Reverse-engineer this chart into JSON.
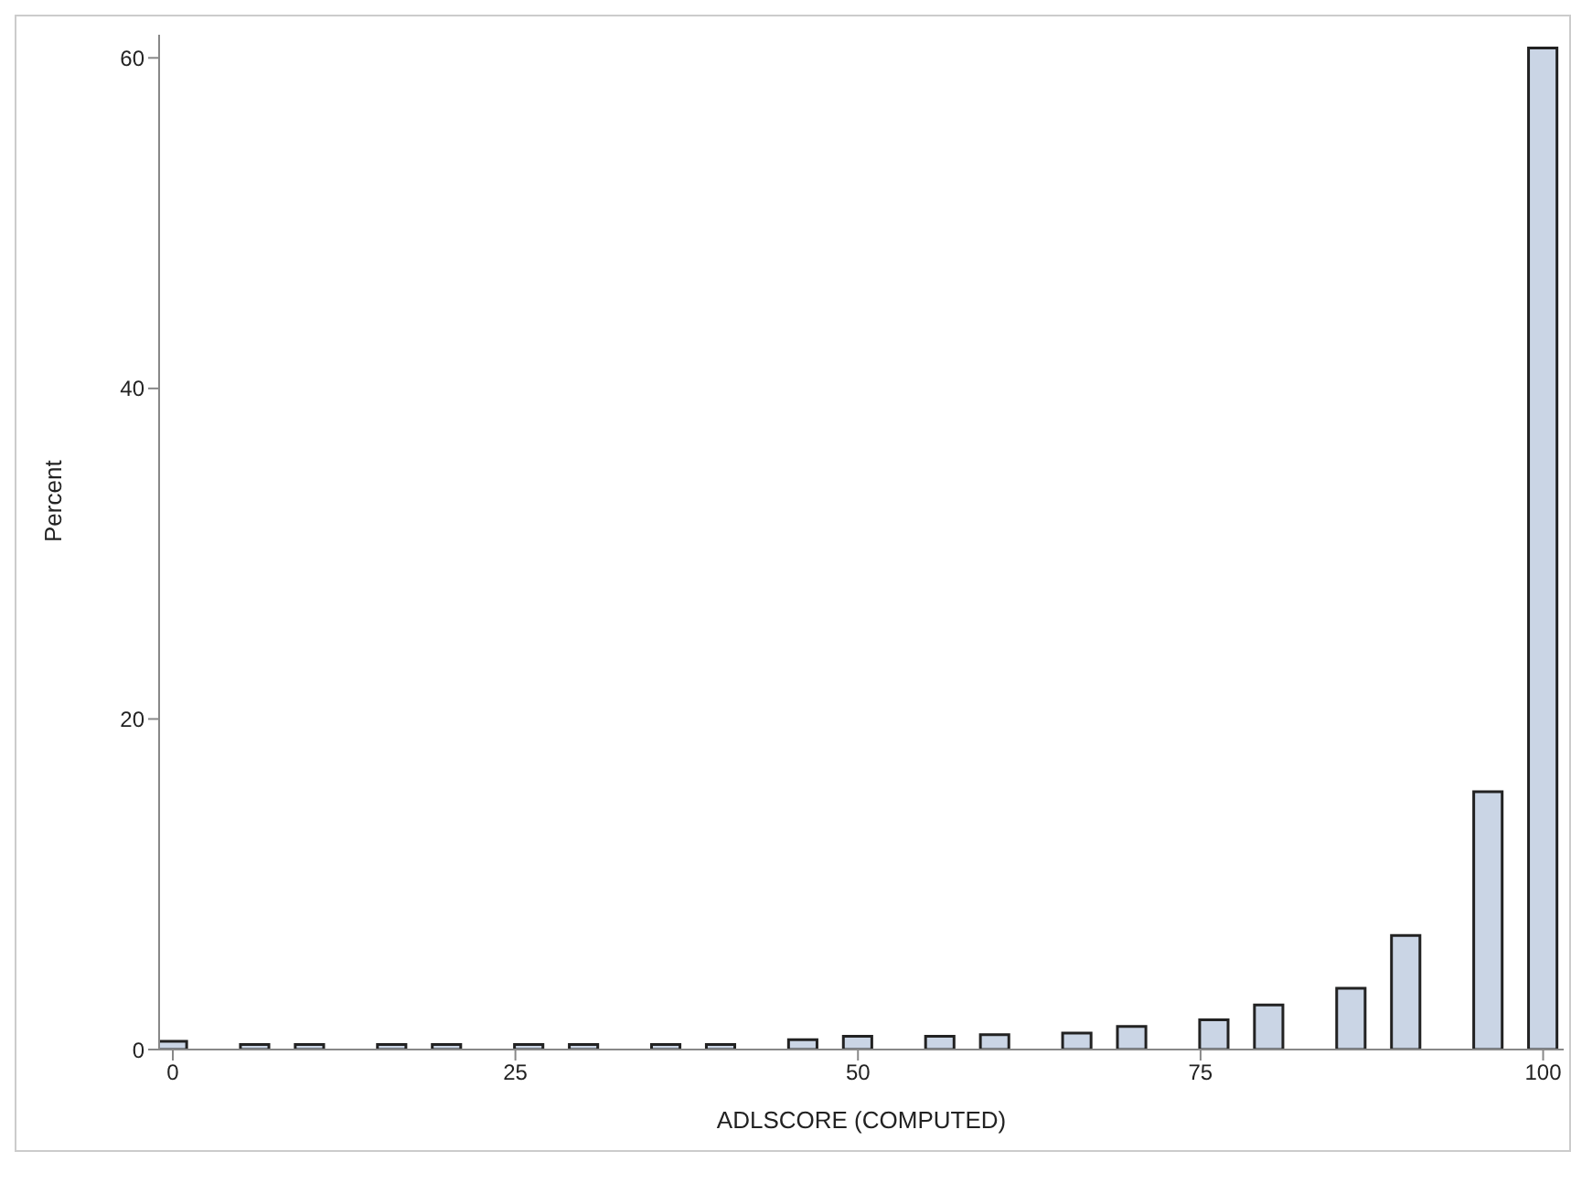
{
  "chart_data": {
    "type": "bar",
    "xlabel": "ADLSCORE (COMPUTED)",
    "ylabel": "Percent",
    "x": [
      0,
      6,
      10,
      16,
      20,
      26,
      30,
      36,
      40,
      46,
      50,
      56,
      60,
      66,
      70,
      76,
      80,
      86,
      90,
      96,
      100
    ],
    "values": [
      0.5,
      0.3,
      0.3,
      0.3,
      0.3,
      0.3,
      0.3,
      0.3,
      0.3,
      0.6,
      0.8,
      0.8,
      0.9,
      1.0,
      1.4,
      1.8,
      2.7,
      3.7,
      6.9,
      15.6,
      60.6
    ],
    "color": "#cad5e5",
    "xlim": [
      -1,
      101.5
    ],
    "xticks": [
      0,
      25,
      50,
      75,
      100
    ],
    "ylim": [
      0,
      61.4
    ],
    "yticks": [
      0,
      20,
      40,
      60
    ],
    "grid": false
  }
}
